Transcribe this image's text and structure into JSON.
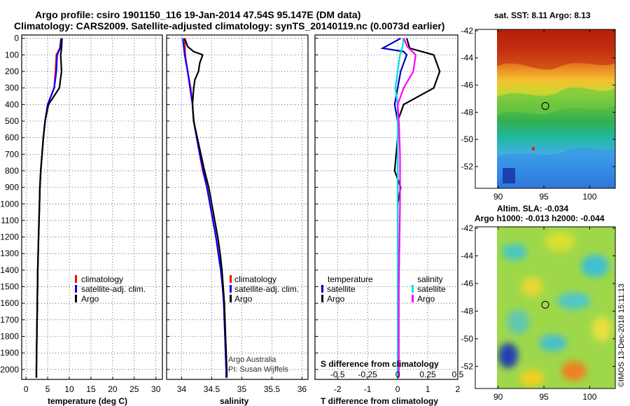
{
  "header": {
    "line1": "Argo profile: csiro 1901150_116 19-Jan-2014 47.54S 95.147E (DM data)",
    "line2": "Climatology: CARS2009. Satellite-adjusted climatology: synTS_20140119.nc (0.0073d earlier)"
  },
  "credits": {
    "argo_australia": "Argo Australia",
    "pi": "PI: Susan Wijffels",
    "imos": "©IMOS 13-Dec-2018 15:11:13"
  },
  "colors": {
    "climatology": "#ff0000",
    "satellite": "#0000ff",
    "argo": "#000000",
    "t_satellite": "#0000c0",
    "s_satellite": "#00e0e0",
    "s_argo": "#ff00ff"
  },
  "chart_data": [
    {
      "type": "line",
      "name": "temperature",
      "xlabel": "temperature (deg C)",
      "xlim": [
        -1,
        31.5
      ],
      "ylim": [
        2060,
        -20
      ],
      "xticks": [
        0,
        5,
        10,
        15,
        20,
        25,
        30
      ],
      "depth_ticks": [
        0,
        100,
        200,
        300,
        400,
        500,
        600,
        700,
        800,
        900,
        1000,
        1100,
        1200,
        1300,
        1400,
        1500,
        1600,
        1700,
        1800,
        1900,
        2000
      ],
      "legend": [
        "climatology",
        "satellite-adj. clim.",
        "Argo"
      ],
      "series": [
        {
          "name": "climatology",
          "color": "#ff0000",
          "points": [
            [
              8.1,
              0
            ],
            [
              7.8,
              60
            ],
            [
              7.0,
              100
            ],
            [
              6.8,
              200
            ],
            [
              6.5,
              300
            ],
            [
              5.0,
              400
            ],
            [
              4.4,
              500
            ],
            [
              4.0,
              600
            ],
            [
              3.7,
              700
            ],
            [
              3.4,
              800
            ],
            [
              3.2,
              900
            ],
            [
              3.1,
              1000
            ],
            [
              2.9,
              1200
            ],
            [
              2.7,
              1400
            ],
            [
              2.6,
              1600
            ],
            [
              2.5,
              1800
            ],
            [
              2.4,
              2000
            ],
            [
              2.4,
              2050
            ]
          ]
        },
        {
          "name": "satellite-adj. clim.",
          "color": "#0000ff",
          "points": [
            [
              8.1,
              0
            ],
            [
              7.9,
              60
            ],
            [
              7.2,
              100
            ],
            [
              7.0,
              200
            ],
            [
              6.5,
              300
            ],
            [
              5.0,
              400
            ],
            [
              4.4,
              500
            ],
            [
              4.0,
              600
            ],
            [
              3.7,
              700
            ],
            [
              3.4,
              800
            ],
            [
              3.2,
              900
            ],
            [
              3.1,
              1000
            ],
            [
              2.9,
              1200
            ],
            [
              2.7,
              1400
            ],
            [
              2.6,
              1600
            ],
            [
              2.5,
              1800
            ],
            [
              2.4,
              2000
            ],
            [
              2.4,
              2050
            ]
          ]
        },
        {
          "name": "Argo",
          "color": "#000000",
          "points": [
            [
              8.3,
              0
            ],
            [
              8.2,
              60
            ],
            [
              8.0,
              100
            ],
            [
              8.2,
              200
            ],
            [
              7.7,
              300
            ],
            [
              5.2,
              400
            ],
            [
              4.4,
              500
            ],
            [
              4.0,
              600
            ],
            [
              3.7,
              700
            ],
            [
              3.4,
              800
            ],
            [
              3.2,
              900
            ],
            [
              3.1,
              1000
            ],
            [
              2.9,
              1200
            ],
            [
              2.7,
              1400
            ],
            [
              2.6,
              1600
            ],
            [
              2.5,
              1800
            ],
            [
              2.4,
              2000
            ],
            [
              2.4,
              2050
            ]
          ]
        }
      ]
    },
    {
      "type": "line",
      "name": "salinity",
      "xlabel": "salinity",
      "xlim": [
        33.75,
        36.1
      ],
      "ylim": [
        2060,
        -20
      ],
      "xticks": [
        34,
        34.5,
        35,
        35.5,
        36
      ],
      "legend": [
        "climatology",
        "satellite-adj. clim.",
        "Argo"
      ],
      "series": [
        {
          "name": "climatology",
          "color": "#ff0000",
          "points": [
            [
              34.05,
              0
            ],
            [
              34.06,
              100
            ],
            [
              34.1,
              200
            ],
            [
              34.15,
              300
            ],
            [
              34.18,
              400
            ],
            [
              34.2,
              500
            ],
            [
              34.25,
              600
            ],
            [
              34.3,
              700
            ],
            [
              34.35,
              800
            ],
            [
              34.42,
              900
            ],
            [
              34.47,
              1000
            ],
            [
              34.52,
              1100
            ],
            [
              34.57,
              1200
            ],
            [
              34.61,
              1300
            ],
            [
              34.65,
              1400
            ],
            [
              34.68,
              1500
            ],
            [
              34.7,
              1600
            ],
            [
              34.71,
              1700
            ],
            [
              34.72,
              1800
            ],
            [
              34.73,
              1900
            ],
            [
              34.74,
              2000
            ],
            [
              34.74,
              2050
            ]
          ]
        },
        {
          "name": "satellite-adj. clim.",
          "color": "#0000ff",
          "points": [
            [
              34.02,
              0
            ],
            [
              34.05,
              100
            ],
            [
              34.1,
              200
            ],
            [
              34.14,
              300
            ],
            [
              34.18,
              400
            ],
            [
              34.2,
              500
            ],
            [
              34.25,
              600
            ],
            [
              34.3,
              700
            ],
            [
              34.36,
              800
            ],
            [
              34.42,
              900
            ],
            [
              34.47,
              1000
            ],
            [
              34.52,
              1100
            ],
            [
              34.57,
              1200
            ],
            [
              34.61,
              1300
            ],
            [
              34.65,
              1400
            ],
            [
              34.68,
              1500
            ],
            [
              34.7,
              1600
            ],
            [
              34.71,
              1700
            ],
            [
              34.72,
              1800
            ],
            [
              34.73,
              1900
            ],
            [
              34.74,
              2000
            ],
            [
              34.74,
              2050
            ]
          ]
        },
        {
          "name": "Argo",
          "color": "#000000",
          "points": [
            [
              34.05,
              0
            ],
            [
              34.1,
              50
            ],
            [
              34.2,
              80
            ],
            [
              34.35,
              100
            ],
            [
              34.3,
              150
            ],
            [
              34.28,
              200
            ],
            [
              34.22,
              250
            ],
            [
              34.2,
              300
            ],
            [
              34.18,
              400
            ],
            [
              34.2,
              500
            ],
            [
              34.26,
              600
            ],
            [
              34.32,
              700
            ],
            [
              34.38,
              800
            ],
            [
              34.45,
              900
            ],
            [
              34.5,
              1000
            ],
            [
              34.55,
              1100
            ],
            [
              34.6,
              1200
            ],
            [
              34.64,
              1300
            ],
            [
              34.67,
              1400
            ],
            [
              34.69,
              1500
            ],
            [
              34.71,
              1600
            ],
            [
              34.72,
              1700
            ],
            [
              34.73,
              1800
            ],
            [
              34.74,
              1900
            ],
            [
              34.75,
              2000
            ],
            [
              34.75,
              2050
            ]
          ]
        }
      ]
    },
    {
      "type": "line",
      "name": "difference",
      "xlabel": "T difference from climatology",
      "top_axis_label": "S difference from climatology",
      "xlim": [
        -2.75,
        2.0
      ],
      "ylim": [
        2060,
        -20
      ],
      "xticks": [
        -2,
        -1,
        0,
        1,
        2
      ],
      "top_ticks": [
        -0.5,
        -0.25,
        0,
        0.25,
        0.5
      ],
      "top_tick_labels": [
        "-0.5",
        "-0.25",
        "0",
        "0.25",
        "0.5"
      ],
      "legend_temperature_title": "temperature",
      "legend_salinity_title": "salinity",
      "legend_temperature": [
        "satellite",
        "Argo"
      ],
      "legend_salinity": [
        "satellite",
        "Argo"
      ],
      "series": [
        {
          "name": "temperature satellite",
          "color": "#0000c0",
          "points": [
            [
              0.1,
              0
            ],
            [
              -0.3,
              40
            ],
            [
              -0.5,
              60
            ],
            [
              0.2,
              80
            ],
            [
              0.3,
              100
            ],
            [
              0.1,
              200
            ],
            [
              0.0,
              300
            ],
            [
              -0.1,
              400
            ],
            [
              0.0,
              500
            ],
            [
              0.0,
              600
            ],
            [
              0.0,
              800
            ],
            [
              0.0,
              1000
            ],
            [
              0.0,
              1500
            ],
            [
              0.0,
              2000
            ],
            [
              0.0,
              2050
            ]
          ]
        },
        {
          "name": "temperature Argo",
          "color": "#000000",
          "points": [
            [
              0.3,
              0
            ],
            [
              0.4,
              60
            ],
            [
              0.8,
              80
            ],
            [
              1.2,
              100
            ],
            [
              1.4,
              200
            ],
            [
              1.2,
              300
            ],
            [
              0.2,
              400
            ],
            [
              0.0,
              500
            ],
            [
              0.0,
              600
            ],
            [
              -0.1,
              800
            ],
            [
              0.1,
              900
            ],
            [
              0.0,
              1000
            ],
            [
              0.0,
              1500
            ],
            [
              0.0,
              2000
            ],
            [
              0.0,
              2050
            ]
          ]
        },
        {
          "name": "salinity satellite",
          "color": "#00e0e0",
          "points": [
            [
              0.05,
              0
            ],
            [
              0.04,
              50
            ],
            [
              0.02,
              100
            ],
            [
              0.0,
              200
            ],
            [
              -0.02,
              300
            ],
            [
              0.0,
              400
            ],
            [
              0.0,
              600
            ],
            [
              0.0,
              1000
            ],
            [
              0.0,
              1500
            ],
            [
              0.0,
              2000
            ],
            [
              0.0,
              2050
            ]
          ]
        },
        {
          "name": "salinity Argo",
          "color": "#ff00ff",
          "points": [
            [
              0.05,
              0
            ],
            [
              0.08,
              50
            ],
            [
              0.15,
              100
            ],
            [
              0.13,
              200
            ],
            [
              0.05,
              300
            ],
            [
              0.0,
              400
            ],
            [
              0.01,
              500
            ],
            [
              0.02,
              700
            ],
            [
              0.02,
              1000
            ],
            [
              0.01,
              1500
            ],
            [
              0.01,
              2000
            ],
            [
              0.01,
              2050
            ]
          ]
        }
      ]
    },
    {
      "type": "heatmap",
      "name": "sst-map",
      "title": "sat. SST: 8.11 Argo: 8.13",
      "xlim": [
        87.5,
        102.8
      ],
      "ylim": [
        -53.6,
        -41.9
      ],
      "xticks": [
        90,
        95,
        100
      ],
      "yticks": [
        -42,
        -44,
        -46,
        -48,
        -50,
        -52
      ],
      "float_position": [
        95.147,
        -47.54
      ]
    },
    {
      "type": "heatmap",
      "name": "sla-map",
      "title": "Altim. SLA: -0.034",
      "subtitle": "Argo h1000: -0.013 h2000: -0.044",
      "xlim": [
        87.5,
        102.8
      ],
      "ylim": [
        -53.6,
        -41.9
      ],
      "xticks": [
        90,
        95,
        100
      ],
      "yticks": [
        -42,
        -44,
        -46,
        -48,
        -50,
        -52
      ],
      "float_position": [
        95.147,
        -47.54
      ]
    }
  ]
}
